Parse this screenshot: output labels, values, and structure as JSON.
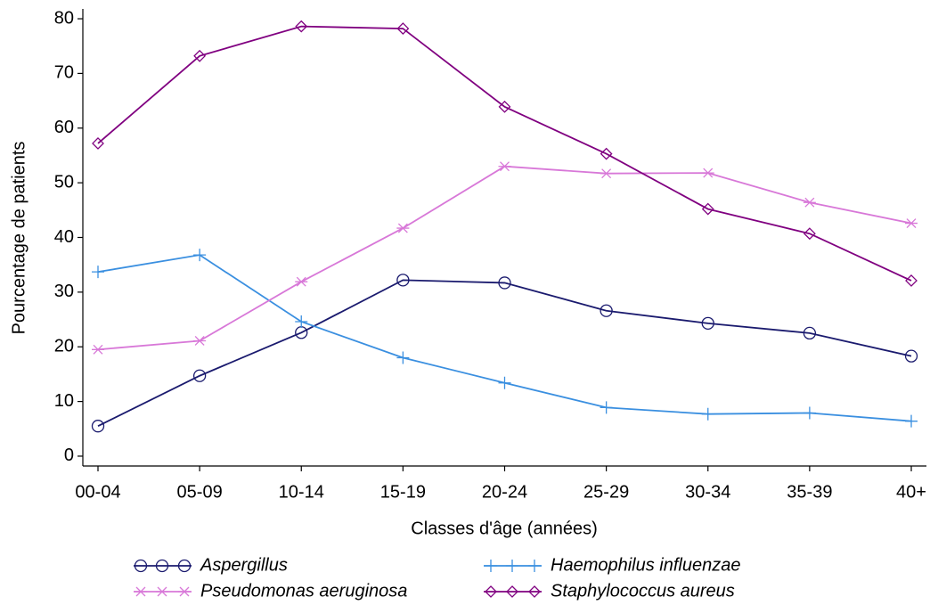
{
  "chart_data": {
    "type": "line",
    "x_label": "Classes d'âge (années)",
    "y_label": "Pourcentage de patients",
    "categories": [
      "00-04",
      "05-09",
      "10-14",
      "15-19",
      "20-24",
      "25-29",
      "30-34",
      "35-39",
      "40+"
    ],
    "series": [
      {
        "name": "Aspergillus",
        "color": "#1a1a6e",
        "marker": "circle",
        "values": [
          5.5,
          14.7,
          22.6,
          32.2,
          31.7,
          26.6,
          24.3,
          22.5,
          18.3
        ]
      },
      {
        "name": "Haemophilus influenzae",
        "color": "#3a8fe0",
        "marker": "plus",
        "values": [
          33.7,
          36.8,
          24.6,
          18.0,
          13.4,
          8.9,
          7.7,
          7.9,
          6.4
        ]
      },
      {
        "name": "Pseudomonas aeruginosa",
        "color": "#d878d8",
        "marker": "asterisk",
        "values": [
          19.5,
          21.1,
          31.9,
          41.7,
          53.0,
          51.7,
          51.8,
          46.4,
          42.6
        ]
      },
      {
        "name": "Staphylococcus aureus",
        "color": "#800080",
        "marker": "diamond",
        "values": [
          57.2,
          73.2,
          78.6,
          78.2,
          63.9,
          55.3,
          45.2,
          40.7,
          32.1
        ]
      }
    ],
    "ylim": [
      -1.8,
      81.8
    ],
    "yticks": [
      0,
      10,
      20,
      30,
      40,
      50,
      60,
      70,
      80
    ],
    "grid": false
  }
}
